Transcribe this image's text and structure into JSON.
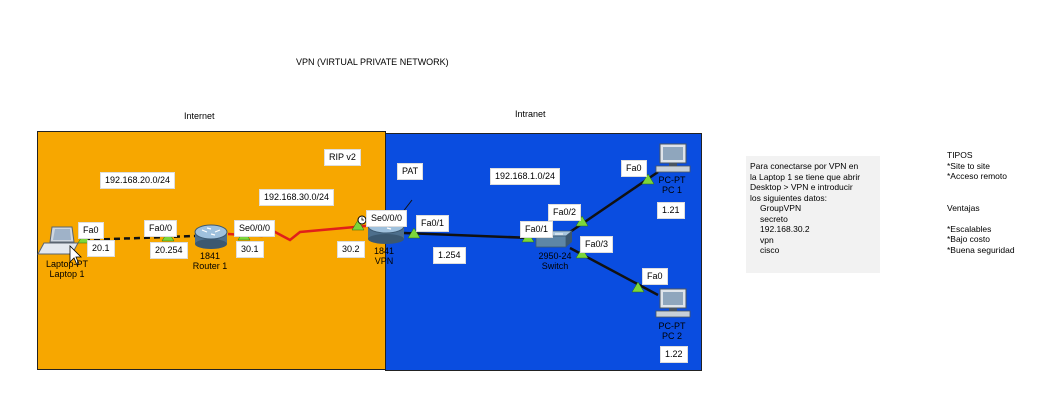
{
  "title": "VPN (VIRTUAL PRIVATE NETWORK)",
  "zones": {
    "internet": "Internet",
    "intranet": "Intranet"
  },
  "networks": {
    "net20": "192.168.20.0/24",
    "net30": "192.168.30.0/24",
    "net1": "192.168.1.0/24",
    "rip": "RIP v2",
    "pat": "PAT"
  },
  "devices": {
    "laptop": {
      "type": "Laptop-PT",
      "name": "Laptop 1"
    },
    "router1": {
      "model": "1841",
      "name": "Router 1"
    },
    "vpn": {
      "model": "1841",
      "name": "VPN"
    },
    "switch": {
      "model": "2950-24",
      "name": "Switch"
    },
    "pc1": {
      "type": "PC-PT",
      "name": "PC 1"
    },
    "pc2": {
      "type": "PC-PT",
      "name": "PC 2"
    }
  },
  "ports": {
    "laptop_fa0": "Fa0",
    "r1_fa00": "Fa0/0",
    "r1_se000": "Se0/0/0",
    "vpn_se000": "Se0/0/0",
    "vpn_fa01": "Fa0/1",
    "sw_fa01": "Fa0/1",
    "sw_fa02": "Fa0/2",
    "sw_fa03": "Fa0/3",
    "pc1_fa0": "Fa0",
    "pc2_fa0": "Fa0"
  },
  "ips": {
    "laptop": "20.1",
    "r1_fa": "20.254",
    "r1_se": "30.1",
    "vpn_se": "30.2",
    "vpn_fa": "1.254",
    "pc1": "1.21",
    "pc2": "1.22"
  },
  "colors": {
    "internet_bg": "#F7A700",
    "intranet_bg": "#0A4DE0",
    "serial_link": "#E0201A",
    "port_up": "#7CD63A"
  },
  "note": {
    "lines": [
      "Para conectarse por VPN en",
      "la Laptop 1  se tiene que abrir",
      "Desktop > VPN e introducir",
      "los siguientes datos:"
    ],
    "data": [
      "GroupVPN",
      "secreto",
      "192.168.30.2",
      "vpn",
      "cisco"
    ]
  },
  "side": {
    "tipos_title": "TIPOS",
    "tipos": [
      "*Site to site",
      "*Acceso remoto"
    ],
    "ventajas_title": "Ventajas",
    "ventajas": [
      "*Escalables",
      "*Bajo costo",
      "*Buena seguridad"
    ]
  }
}
